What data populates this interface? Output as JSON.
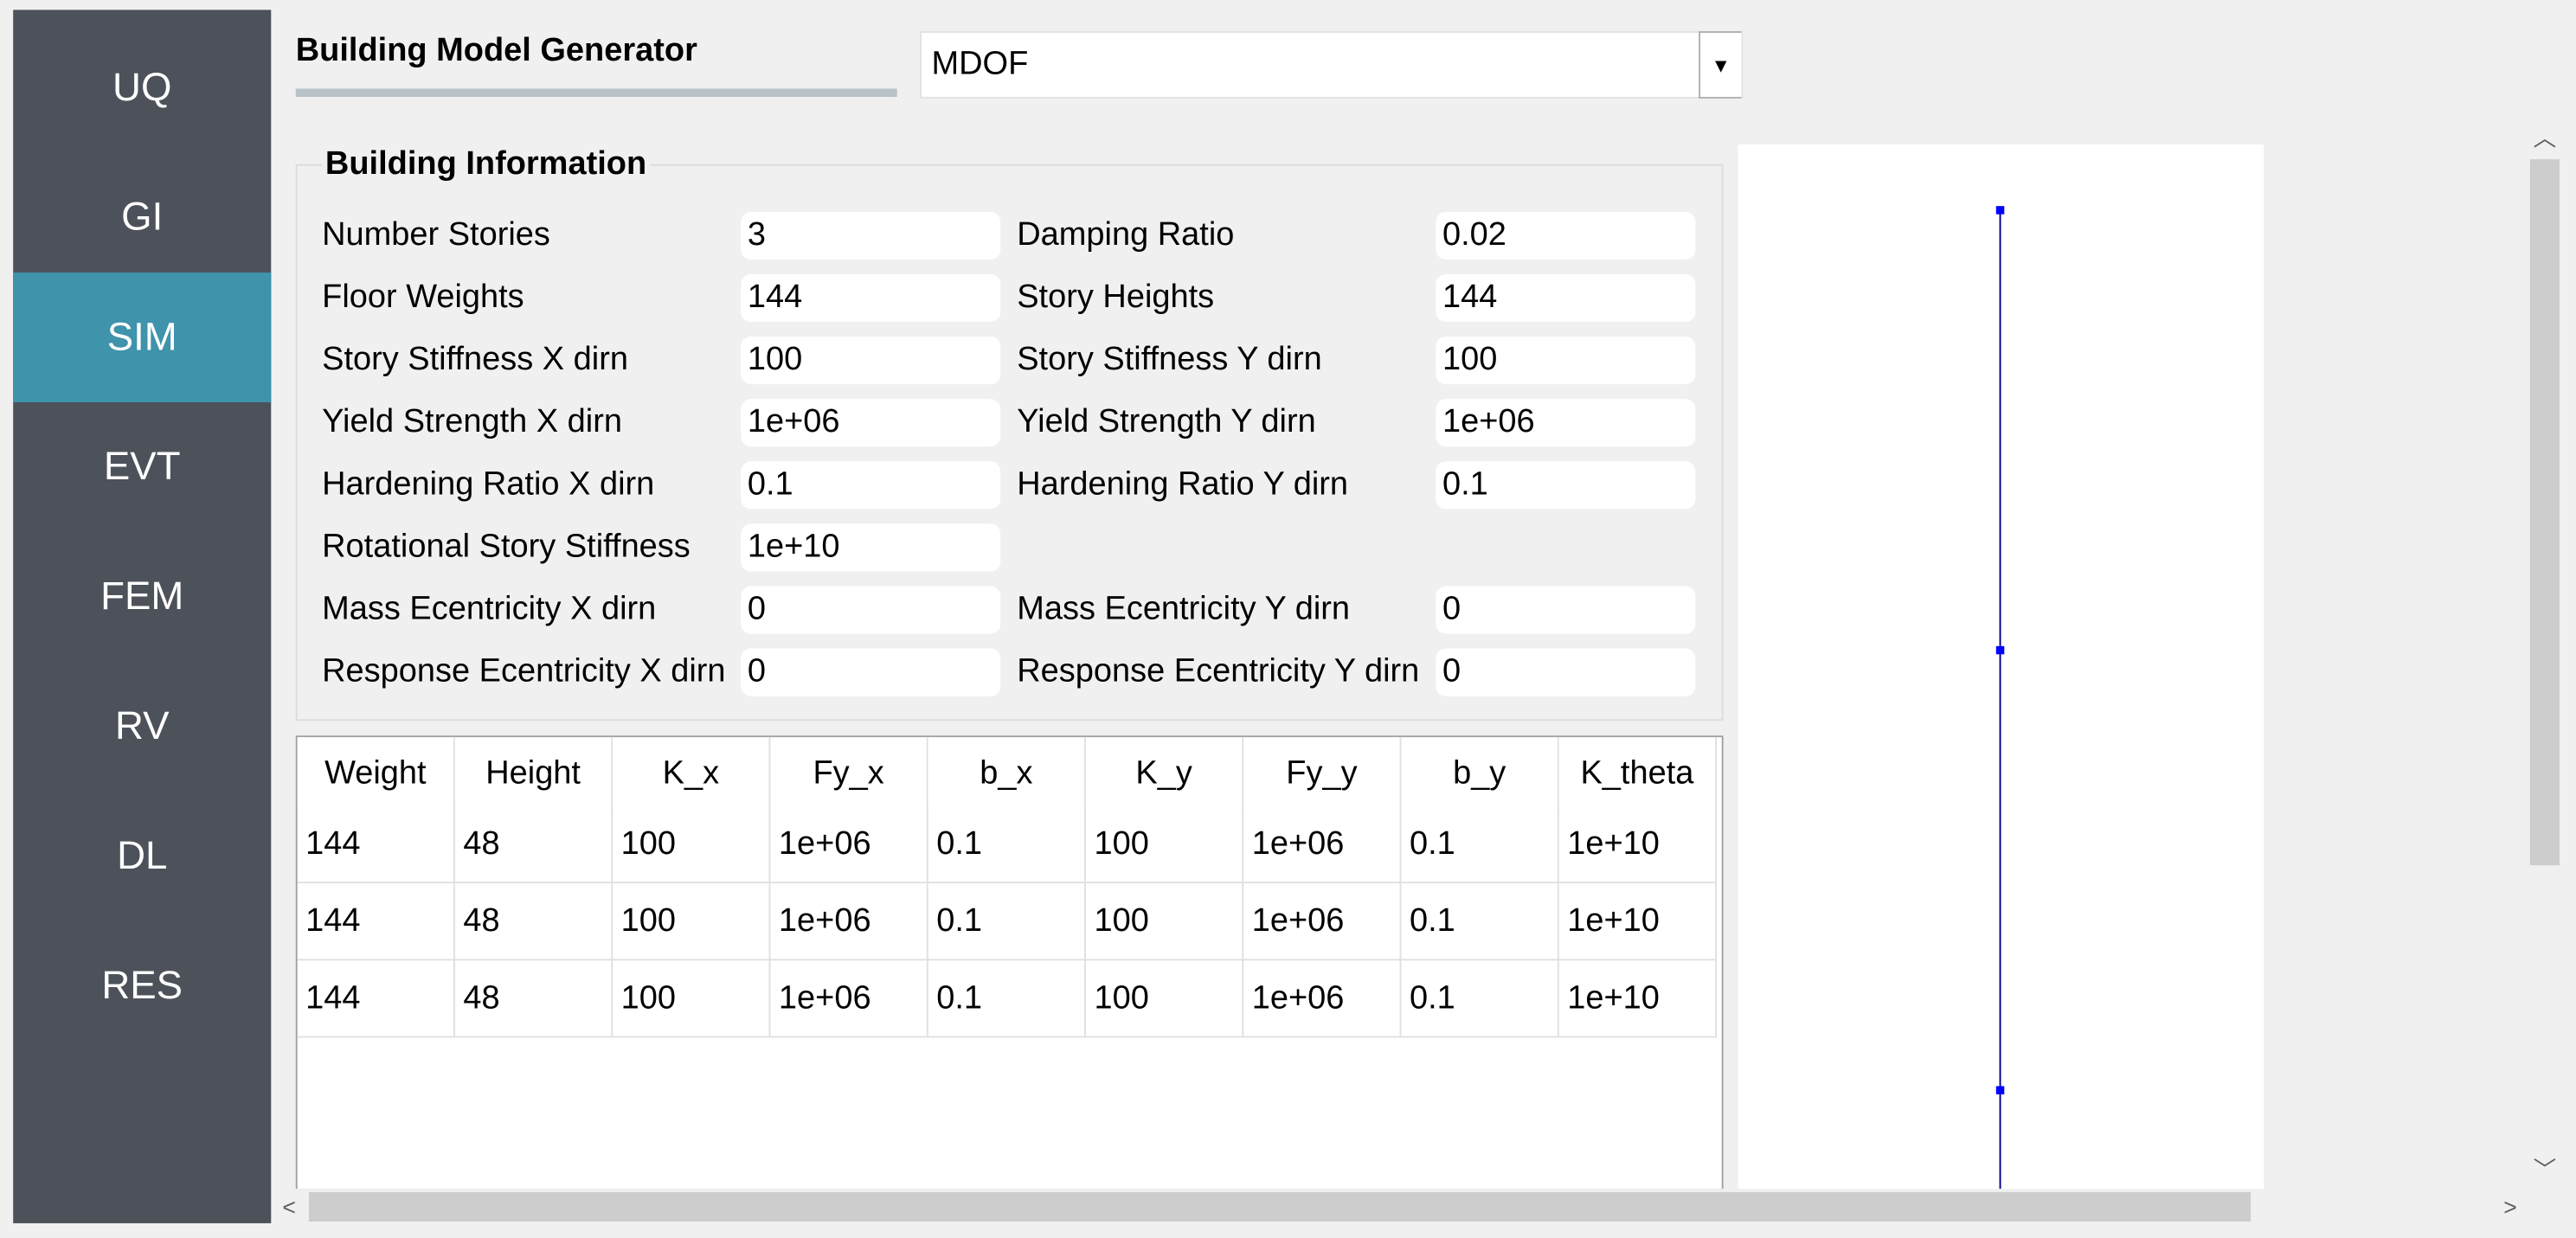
{
  "sidebar": {
    "items": [
      {
        "label": "UQ"
      },
      {
        "label": "GI"
      },
      {
        "label": "SIM",
        "active": true
      },
      {
        "label": "EVT"
      },
      {
        "label": "FEM"
      },
      {
        "label": "RV"
      },
      {
        "label": "DL"
      },
      {
        "label": "RES"
      }
    ],
    "colors": {
      "background": "#4d525a",
      "active": "#3f93aa"
    }
  },
  "header": {
    "title": "Building Model Generator",
    "model_select": {
      "value": "MDOF",
      "icon": "chevron-down-icon"
    }
  },
  "building_info": {
    "title": "Building Information",
    "fields": {
      "number_stories": {
        "label": "Number Stories",
        "value": "3"
      },
      "damping_ratio": {
        "label": "Damping Ratio",
        "value": "0.02"
      },
      "floor_weights": {
        "label": "Floor Weights",
        "value": "144"
      },
      "story_heights": {
        "label": "Story Heights",
        "value": "144"
      },
      "story_stiffness_x": {
        "label": "Story Stiffness X dirn",
        "value": "100"
      },
      "story_stiffness_y": {
        "label": "Story Stiffness Y dirn",
        "value": "100"
      },
      "yield_strength_x": {
        "label": "Yield Strength X dirn",
        "value": "1e+06"
      },
      "yield_strength_y": {
        "label": "Yield Strength Y dirn",
        "value": "1e+06"
      },
      "hardening_ratio_x": {
        "label": "Hardening Ratio X dirn",
        "value": "0.1"
      },
      "hardening_ratio_y": {
        "label": "Hardening Ratio Y dirn",
        "value": "0.1"
      },
      "rotational_stiffness": {
        "label": "Rotational Story Stiffness",
        "value": "1e+10"
      },
      "mass_ecc_x": {
        "label": "Mass Ecentricity X dirn",
        "value": "0"
      },
      "mass_ecc_y": {
        "label": "Mass Ecentricity Y dirn",
        "value": "0"
      },
      "resp_ecc_x": {
        "label": "Response Ecentricity X dirn",
        "value": "0"
      },
      "resp_ecc_y": {
        "label": "Response Ecentricity Y dirn",
        "value": "0"
      }
    }
  },
  "table": {
    "headers": [
      "Weight",
      "Height",
      "K_x",
      "Fy_x",
      "b_x",
      "K_y",
      "Fy_y",
      "b_y",
      "K_theta"
    ],
    "rows": [
      [
        "144",
        "48",
        "100",
        "1e+06",
        "0.1",
        "100",
        "1e+06",
        "0.1",
        "1e+10"
      ],
      [
        "144",
        "48",
        "100",
        "1e+06",
        "0.1",
        "100",
        "1e+06",
        "0.1",
        "1e+10"
      ],
      [
        "144",
        "48",
        "100",
        "1e+06",
        "0.1",
        "100",
        "1e+06",
        "0.1",
        "1e+10"
      ]
    ]
  },
  "graphic": {
    "line_color": "#00008b",
    "node_color": "#0000ff"
  },
  "scrollbars": {
    "up_icon": "chevron-up-icon",
    "down_icon": "chevron-down-icon",
    "left_icon": "chevron-left-icon",
    "right_icon": "chevron-right-icon"
  }
}
